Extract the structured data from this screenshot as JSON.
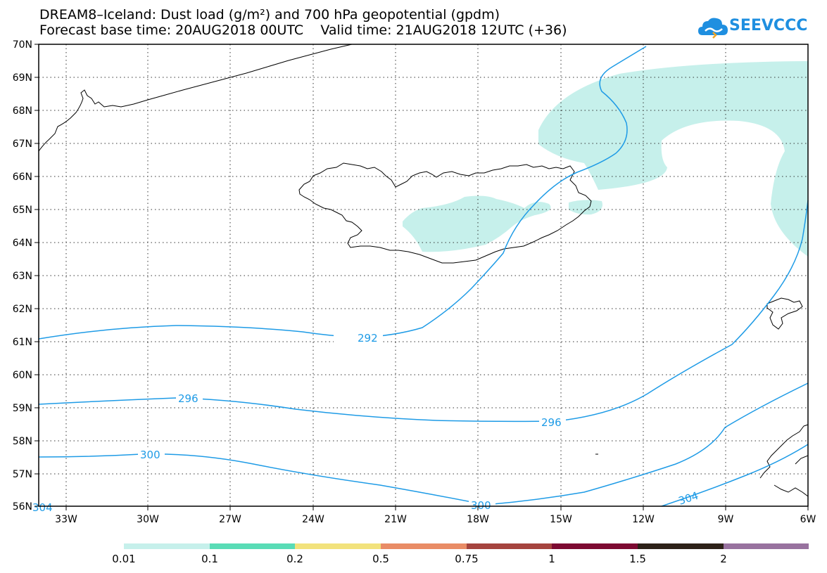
{
  "title_line1": "DREAM8–Iceland: Dust load (g/m²) and 700 hPa geopotential (gpdm)",
  "title_line2": "Forecast base time: 20AUG2018 00UTC    Valid time: 21AUG2018 12UTC (+36)",
  "logo_text": "SEEVCCC",
  "map": {
    "lon_range": [
      -34,
      -6
    ],
    "lat_range": [
      56,
      70
    ],
    "lon_ticks": [
      "33W",
      "30W",
      "27W",
      "24W",
      "21W",
      "18W",
      "15W",
      "12W",
      "9W",
      "6W"
    ],
    "lat_ticks": [
      "70N",
      "69N",
      "68N",
      "67N",
      "66N",
      "65N",
      "64N",
      "63N",
      "62N",
      "61N",
      "60N",
      "59N",
      "58N",
      "57N",
      "56N"
    ],
    "gridlines": true,
    "dust_fill_color": "#c6f0eb",
    "contour_color": "#1e9be6",
    "coast_color": "#000000",
    "contour_labels": [
      "292",
      "296",
      "296",
      "300",
      "300",
      "304",
      "304"
    ]
  },
  "colorbar": {
    "labels": [
      "0.01",
      "0.1",
      "0.2",
      "0.5",
      "0.75",
      "1",
      "1.5",
      "2"
    ],
    "colors": [
      "#c6f0eb",
      "#59dcb6",
      "#f2e27c",
      "#e98c66",
      "#a5443e",
      "#7d0a32",
      "#2d2118",
      "#98729f"
    ]
  }
}
